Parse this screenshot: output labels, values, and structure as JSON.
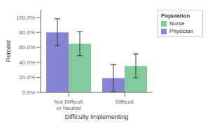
{
  "chart_data": {
    "type": "bar",
    "xlabel": "Difficulty Implementing",
    "ylabel": "Percent",
    "categories": [
      "Not Difficult or Neutral",
      "Difficult"
    ],
    "series": [
      {
        "name": "Physician",
        "values": [
          80.0,
          19.0
        ],
        "errors": [
          18.0,
          18.0
        ]
      },
      {
        "name": "Nurse",
        "values": [
          64.7,
          35.3
        ],
        "errors": [
          16.0,
          16.0
        ]
      }
    ],
    "ylim": [
      0,
      110
    ],
    "yticks": [
      {
        "value": 0.0,
        "label": "0.0%"
      },
      {
        "value": 20.0,
        "label": "20.0%"
      },
      {
        "value": 40.0,
        "label": "40.0%"
      },
      {
        "value": 60.0,
        "label": "60.0%"
      },
      {
        "value": 80.0,
        "label": "80.0%"
      },
      {
        "value": 100.0,
        "label": "100.0%"
      }
    ],
    "legend": "right",
    "legend_title": "Population"
  }
}
